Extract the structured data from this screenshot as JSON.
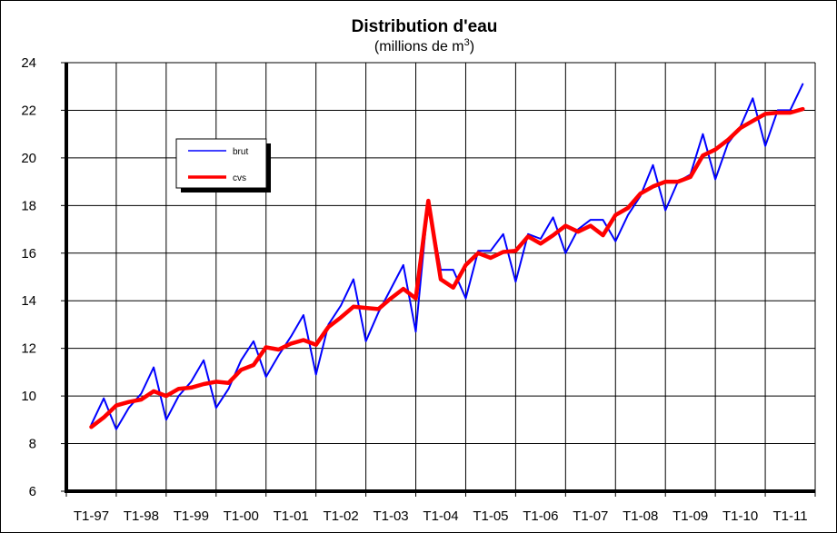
{
  "chart_data": {
    "type": "line",
    "title": "Distribution d'eau",
    "subtitle_prefix": "(millions de m",
    "subtitle_sup": "3",
    "subtitle_suffix": ")",
    "ylim": [
      6,
      24
    ],
    "yticks": [
      6,
      8,
      10,
      12,
      14,
      16,
      18,
      20,
      22,
      24
    ],
    "grid": true,
    "legend_placement": "upper-left",
    "x_tick_labels": [
      "T1-97",
      "T1-98",
      "T1-99",
      "T1-00",
      "T1-01",
      "T1-02",
      "T1-03",
      "T1-04",
      "T1-05",
      "T1-06",
      "T1-07",
      "T1-08",
      "T1-09",
      "T1-10",
      "T1-11"
    ],
    "x_quarters": [
      "T1-97",
      "T2-97",
      "T3-97",
      "T4-97",
      "T1-98",
      "T2-98",
      "T3-98",
      "T4-98",
      "T1-99",
      "T2-99",
      "T3-99",
      "T4-99",
      "T1-00",
      "T2-00",
      "T3-00",
      "T4-00",
      "T1-01",
      "T2-01",
      "T3-01",
      "T4-01",
      "T1-02",
      "T2-02",
      "T3-02",
      "T4-02",
      "T1-03",
      "T2-03",
      "T3-03",
      "T4-03",
      "T1-04",
      "T2-04",
      "T3-04",
      "T4-04",
      "T1-05",
      "T2-05",
      "T3-05",
      "T4-05",
      "T1-06",
      "T2-06",
      "T3-06",
      "T4-06",
      "T1-07",
      "T2-07",
      "T3-07",
      "T4-07",
      "T1-08",
      "T2-08",
      "T3-08",
      "T4-08",
      "T1-09",
      "T2-09",
      "T3-09",
      "T4-09",
      "T1-10",
      "T2-10",
      "T3-10",
      "T4-10",
      "T1-11",
      "T2-11"
    ],
    "series": [
      {
        "name": "brut",
        "color": "#0000ff",
        "values": [
          8.8,
          9.9,
          8.6,
          9.5,
          10.1,
          11.2,
          9.0,
          10.0,
          10.6,
          11.5,
          9.5,
          10.3,
          11.5,
          12.3,
          10.8,
          11.7,
          12.5,
          13.4,
          10.9,
          13.0,
          13.8,
          14.9,
          12.3,
          13.5,
          14.5,
          15.5,
          12.7,
          18.2,
          15.3,
          15.3,
          14.1,
          16.1,
          16.1,
          16.8,
          14.8,
          16.8,
          16.6,
          17.5,
          16.0,
          17.0,
          17.4,
          17.4,
          16.5,
          17.6,
          18.4,
          19.7,
          17.8,
          19.0,
          19.3,
          21.0,
          19.1,
          20.6,
          21.3,
          22.5,
          20.5,
          22.0,
          22.0,
          23.1
        ]
      },
      {
        "name": "cvs",
        "color": "#ff0000",
        "values": [
          8.7,
          9.1,
          9.6,
          9.75,
          9.85,
          10.2,
          10.0,
          10.3,
          10.35,
          10.5,
          10.6,
          10.55,
          11.1,
          11.3,
          12.05,
          11.95,
          12.2,
          12.35,
          12.15,
          12.9,
          13.3,
          13.75,
          13.7,
          13.65,
          14.1,
          14.5,
          14.1,
          18.2,
          14.9,
          14.55,
          15.5,
          16.0,
          15.8,
          16.05,
          16.1,
          16.7,
          16.4,
          16.75,
          17.15,
          16.9,
          17.15,
          16.75,
          17.6,
          17.9,
          18.5,
          18.8,
          19.0,
          19.0,
          19.2,
          20.1,
          20.35,
          20.75,
          21.25,
          21.55,
          21.85,
          21.9,
          21.9,
          22.05
        ]
      }
    ]
  }
}
